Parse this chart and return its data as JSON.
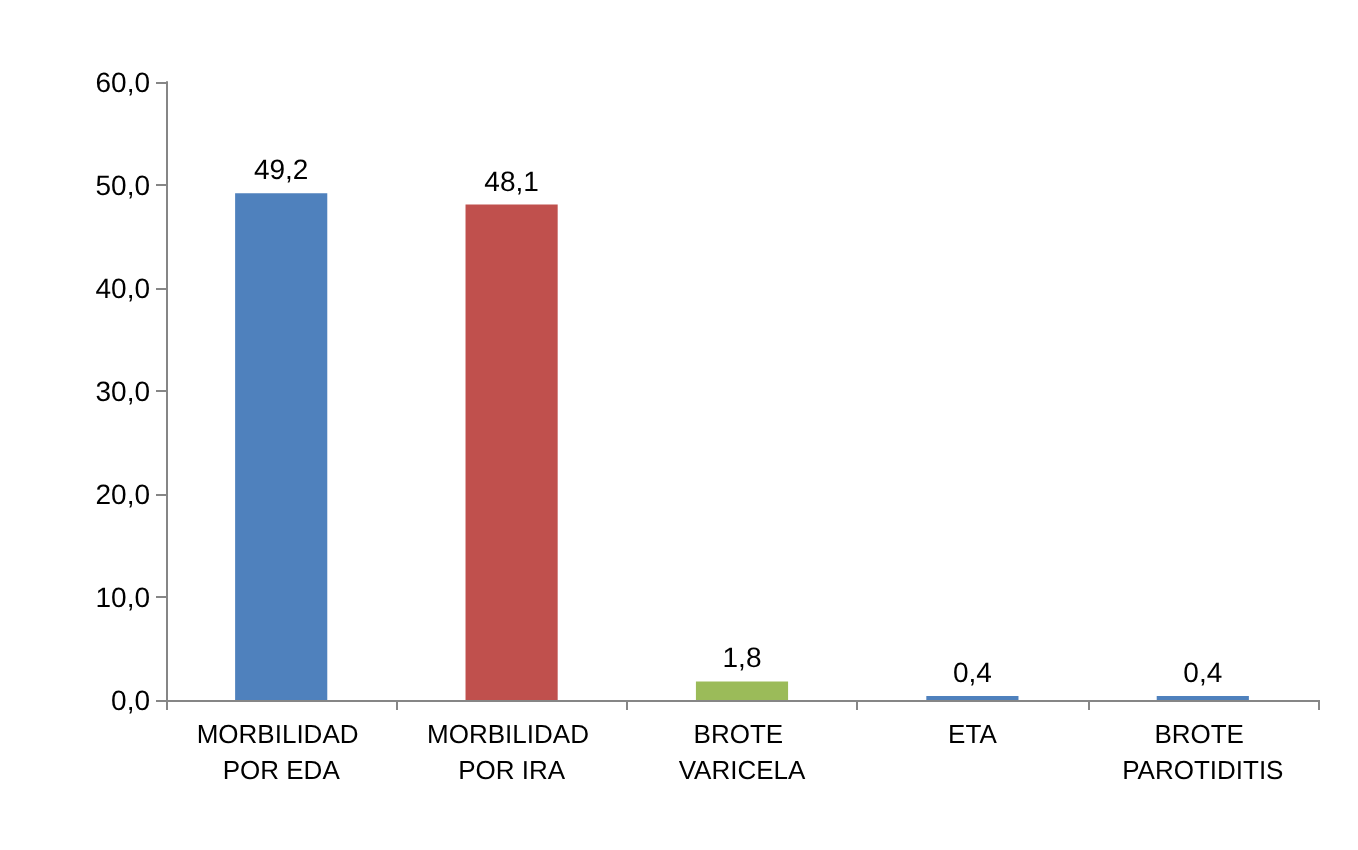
{
  "chart_data": {
    "type": "bar",
    "categories": [
      "MORBILIDAD POR EDA",
      "MORBILIDAD POR IRA",
      "BROTE VARICELA",
      "ETA",
      "BROTE PAROTIDITIS"
    ],
    "values": [
      49.2,
      48.1,
      1.8,
      0.4,
      0.4
    ],
    "colors": [
      "#4f81bd",
      "#c0504d",
      "#9bbb59",
      "#4f81bd",
      "#4f81bd"
    ],
    "value_labels": [
      "49,2",
      "48,1",
      "1,8",
      "0,4",
      "0,4"
    ],
    "ylim": [
      0,
      60
    ],
    "yticks": [
      {
        "value": 0,
        "label": "0,0"
      },
      {
        "value": 10,
        "label": "10,0"
      },
      {
        "value": 20,
        "label": "20,0"
      },
      {
        "value": 30,
        "label": "30,0"
      },
      {
        "value": 40,
        "label": "40,0"
      },
      {
        "value": 50,
        "label": "50,0"
      },
      {
        "value": 60,
        "label": "60,0"
      }
    ],
    "grid": false
  }
}
